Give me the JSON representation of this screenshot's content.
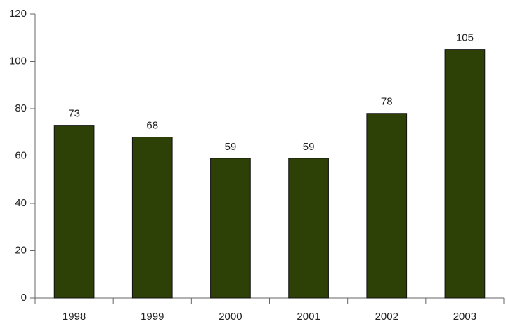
{
  "chart_data": {
    "type": "bar",
    "categories": [
      "1998",
      "1999",
      "2000",
      "2001",
      "2002",
      "2003"
    ],
    "values": [
      73,
      68,
      59,
      59,
      78,
      105
    ],
    "color": "#2d4006",
    "ylim": [
      0,
      120
    ],
    "yticks": [
      0,
      20,
      40,
      60,
      80,
      100,
      120
    ],
    "grid": false
  }
}
